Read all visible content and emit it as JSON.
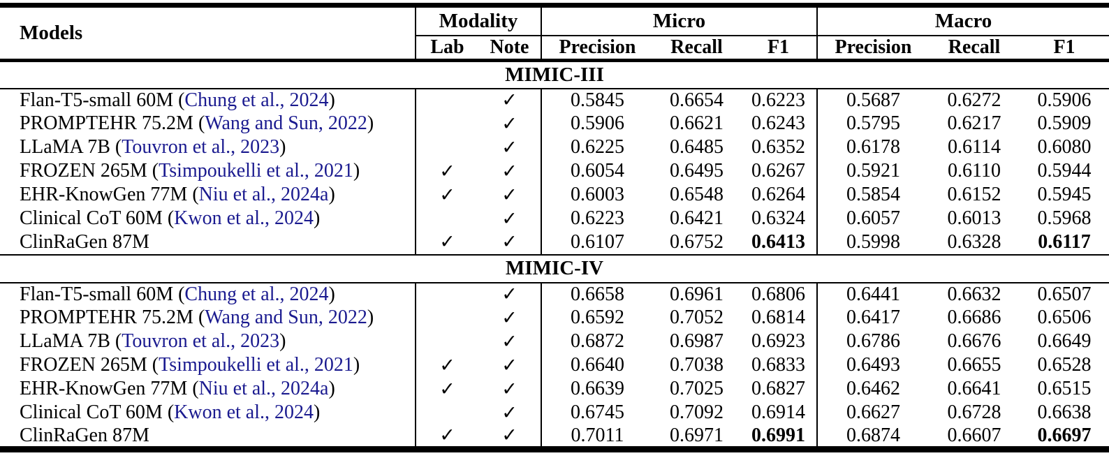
{
  "table": {
    "header": {
      "models": "Models",
      "modality": "Modality",
      "micro": "Micro",
      "macro": "Macro",
      "lab": "Lab",
      "note": "Note",
      "precision": "Precision",
      "recall": "Recall",
      "f1": "F1"
    },
    "checkmark": "✓",
    "paren_open": "(",
    "paren_close": ")",
    "citation_color": "#1a1a8f",
    "sections": [
      {
        "title": "MIMIC-III",
        "rows": [
          {
            "model": "Flan-T5-small 60M",
            "citation": "Chung et al., 2024",
            "lab": false,
            "note": true,
            "values": [
              "0.5845",
              "0.6654",
              "0.6223",
              "0.5687",
              "0.6272",
              "0.5906"
            ],
            "bold_f1": false
          },
          {
            "model": "PROMPTEHR 75.2M",
            "citation": "Wang and Sun, 2022",
            "lab": false,
            "note": true,
            "values": [
              "0.5906",
              "0.6621",
              "0.6243",
              "0.5795",
              "0.6217",
              "0.5909"
            ],
            "bold_f1": false
          },
          {
            "model": "LLaMA 7B",
            "citation": "Touvron et al., 2023",
            "lab": false,
            "note": true,
            "values": [
              "0.6225",
              "0.6485",
              "0.6352",
              "0.6178",
              "0.6114",
              "0.6080"
            ],
            "bold_f1": false
          },
          {
            "model": "FROZEN 265M",
            "citation": "Tsimpoukelli et al., 2021",
            "lab": true,
            "note": true,
            "values": [
              "0.6054",
              "0.6495",
              "0.6267",
              "0.5921",
              "0.6110",
              "0.5944"
            ],
            "bold_f1": false
          },
          {
            "model": "EHR-KnowGen 77M",
            "citation": "Niu et al., 2024a",
            "lab": true,
            "note": true,
            "values": [
              "0.6003",
              "0.6548",
              "0.6264",
              "0.5854",
              "0.6152",
              "0.5945"
            ],
            "bold_f1": false
          },
          {
            "model": "Clinical CoT 60M",
            "citation": "Kwon et al., 2024",
            "lab": false,
            "note": true,
            "values": [
              "0.6223",
              "0.6421",
              "0.6324",
              "0.6057",
              "0.6013",
              "0.5968"
            ],
            "bold_f1": false
          },
          {
            "model": "ClinRaGen 87M",
            "citation": "",
            "lab": true,
            "note": true,
            "values": [
              "0.6107",
              "0.6752",
              "0.6413",
              "0.5998",
              "0.6328",
              "0.6117"
            ],
            "bold_f1": true
          }
        ]
      },
      {
        "title": "MIMIC-IV",
        "rows": [
          {
            "model": "Flan-T5-small 60M",
            "citation": "Chung et al., 2024",
            "lab": false,
            "note": true,
            "values": [
              "0.6658",
              "0.6961",
              "0.6806",
              "0.6441",
              "0.6632",
              "0.6507"
            ],
            "bold_f1": false
          },
          {
            "model": "PROMPTEHR 75.2M",
            "citation": "Wang and Sun, 2022",
            "lab": false,
            "note": true,
            "values": [
              "0.6592",
              "0.7052",
              "0.6814",
              "0.6417",
              "0.6686",
              "0.6506"
            ],
            "bold_f1": false
          },
          {
            "model": "LLaMA 7B",
            "citation": "Touvron et al., 2023",
            "lab": false,
            "note": true,
            "values": [
              "0.6872",
              "0.6987",
              "0.6923",
              "0.6786",
              "0.6676",
              "0.6649"
            ],
            "bold_f1": false
          },
          {
            "model": "FROZEN 265M",
            "citation": "Tsimpoukelli et al., 2021",
            "lab": true,
            "note": true,
            "values": [
              "0.6640",
              "0.7038",
              "0.6833",
              "0.6493",
              "0.6655",
              "0.6528"
            ],
            "bold_f1": false
          },
          {
            "model": "EHR-KnowGen 77M",
            "citation": "Niu et al., 2024a",
            "lab": true,
            "note": true,
            "values": [
              "0.6639",
              "0.7025",
              "0.6827",
              "0.6462",
              "0.6641",
              "0.6515"
            ],
            "bold_f1": false
          },
          {
            "model": "Clinical CoT 60M",
            "citation": "Kwon et al., 2024",
            "lab": false,
            "note": true,
            "values": [
              "0.6745",
              "0.7092",
              "0.6914",
              "0.6627",
              "0.6728",
              "0.6638"
            ],
            "bold_f1": false
          },
          {
            "model": "ClinRaGen 87M",
            "citation": "",
            "lab": true,
            "note": true,
            "values": [
              "0.7011",
              "0.6971",
              "0.6991",
              "0.6874",
              "0.6607",
              "0.6697"
            ],
            "bold_f1": true
          }
        ]
      }
    ]
  }
}
